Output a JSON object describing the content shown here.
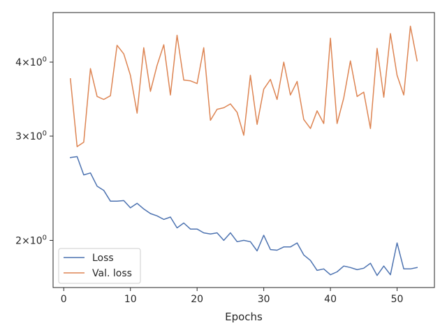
{
  "chart_data": {
    "type": "line",
    "title": "",
    "xlabel": "Epochs",
    "ylabel": "",
    "yscale": "log",
    "xlim": [
      -1.6,
      55.6
    ],
    "ylim": [
      1.665,
      4.85
    ],
    "grid": false,
    "legend_position": "lower-left",
    "xticks": [
      0,
      10,
      20,
      30,
      40,
      50
    ],
    "xtick_labels": [
      "0",
      "10",
      "20",
      "30",
      "40",
      "50"
    ],
    "yticks": [
      2,
      3,
      4
    ],
    "ytick_labels": [
      {
        "base": "2",
        "mid": "×",
        "pow": "10",
        "exp": "0"
      },
      {
        "base": "3",
        "mid": "×",
        "pow": "10",
        "exp": "0"
      },
      {
        "base": "4",
        "mid": "×",
        "pow": "10",
        "exp": "0"
      }
    ],
    "series": [
      {
        "name": "Loss",
        "color": "#4c72b0",
        "x": [
          1,
          2,
          3,
          4,
          5,
          6,
          7,
          8,
          9,
          10,
          11,
          12,
          13,
          14,
          15,
          16,
          17,
          18,
          19,
          20,
          21,
          22,
          23,
          24,
          25,
          26,
          27,
          28,
          29,
          30,
          31,
          32,
          33,
          34,
          35,
          36,
          37,
          38,
          39,
          40,
          41,
          42,
          43,
          44,
          45,
          46,
          47,
          48,
          49,
          50,
          51,
          52,
          53
        ],
        "y": [
          2.76,
          2.77,
          2.58,
          2.6,
          2.47,
          2.43,
          2.33,
          2.33,
          2.335,
          2.27,
          2.31,
          2.26,
          2.22,
          2.2,
          2.17,
          2.19,
          2.1,
          2.14,
          2.09,
          2.09,
          2.06,
          2.05,
          2.06,
          2.0,
          2.06,
          1.99,
          2.0,
          1.99,
          1.92,
          2.04,
          1.93,
          1.925,
          1.95,
          1.95,
          1.98,
          1.89,
          1.85,
          1.78,
          1.79,
          1.75,
          1.77,
          1.81,
          1.8,
          1.785,
          1.795,
          1.83,
          1.745,
          1.81,
          1.75,
          1.98,
          1.79,
          1.79,
          1.8
        ]
      },
      {
        "name": "Val. loss",
        "color": "#dd8452",
        "x": [
          1,
          2,
          3,
          4,
          5,
          6,
          7,
          8,
          9,
          10,
          11,
          12,
          13,
          14,
          15,
          16,
          17,
          18,
          19,
          20,
          21,
          22,
          23,
          24,
          25,
          26,
          27,
          28,
          29,
          30,
          31,
          32,
          33,
          34,
          35,
          36,
          37,
          38,
          39,
          40,
          41,
          42,
          43,
          44,
          45,
          46,
          47,
          48,
          49,
          50,
          51,
          52,
          53
        ],
        "y": [
          3.75,
          2.88,
          2.93,
          3.9,
          3.5,
          3.46,
          3.51,
          4.27,
          4.13,
          3.8,
          3.28,
          4.23,
          3.57,
          3.95,
          4.28,
          3.52,
          4.44,
          3.73,
          3.72,
          3.68,
          4.23,
          3.19,
          3.33,
          3.35,
          3.4,
          3.29,
          3.01,
          3.8,
          3.14,
          3.6,
          3.74,
          3.46,
          4.0,
          3.52,
          3.71,
          3.2,
          3.09,
          3.31,
          3.15,
          4.39,
          3.15,
          3.48,
          4.02,
          3.5,
          3.56,
          3.09,
          4.22,
          3.49,
          4.47,
          3.8,
          3.52,
          4.6,
          4.02
        ]
      }
    ]
  }
}
